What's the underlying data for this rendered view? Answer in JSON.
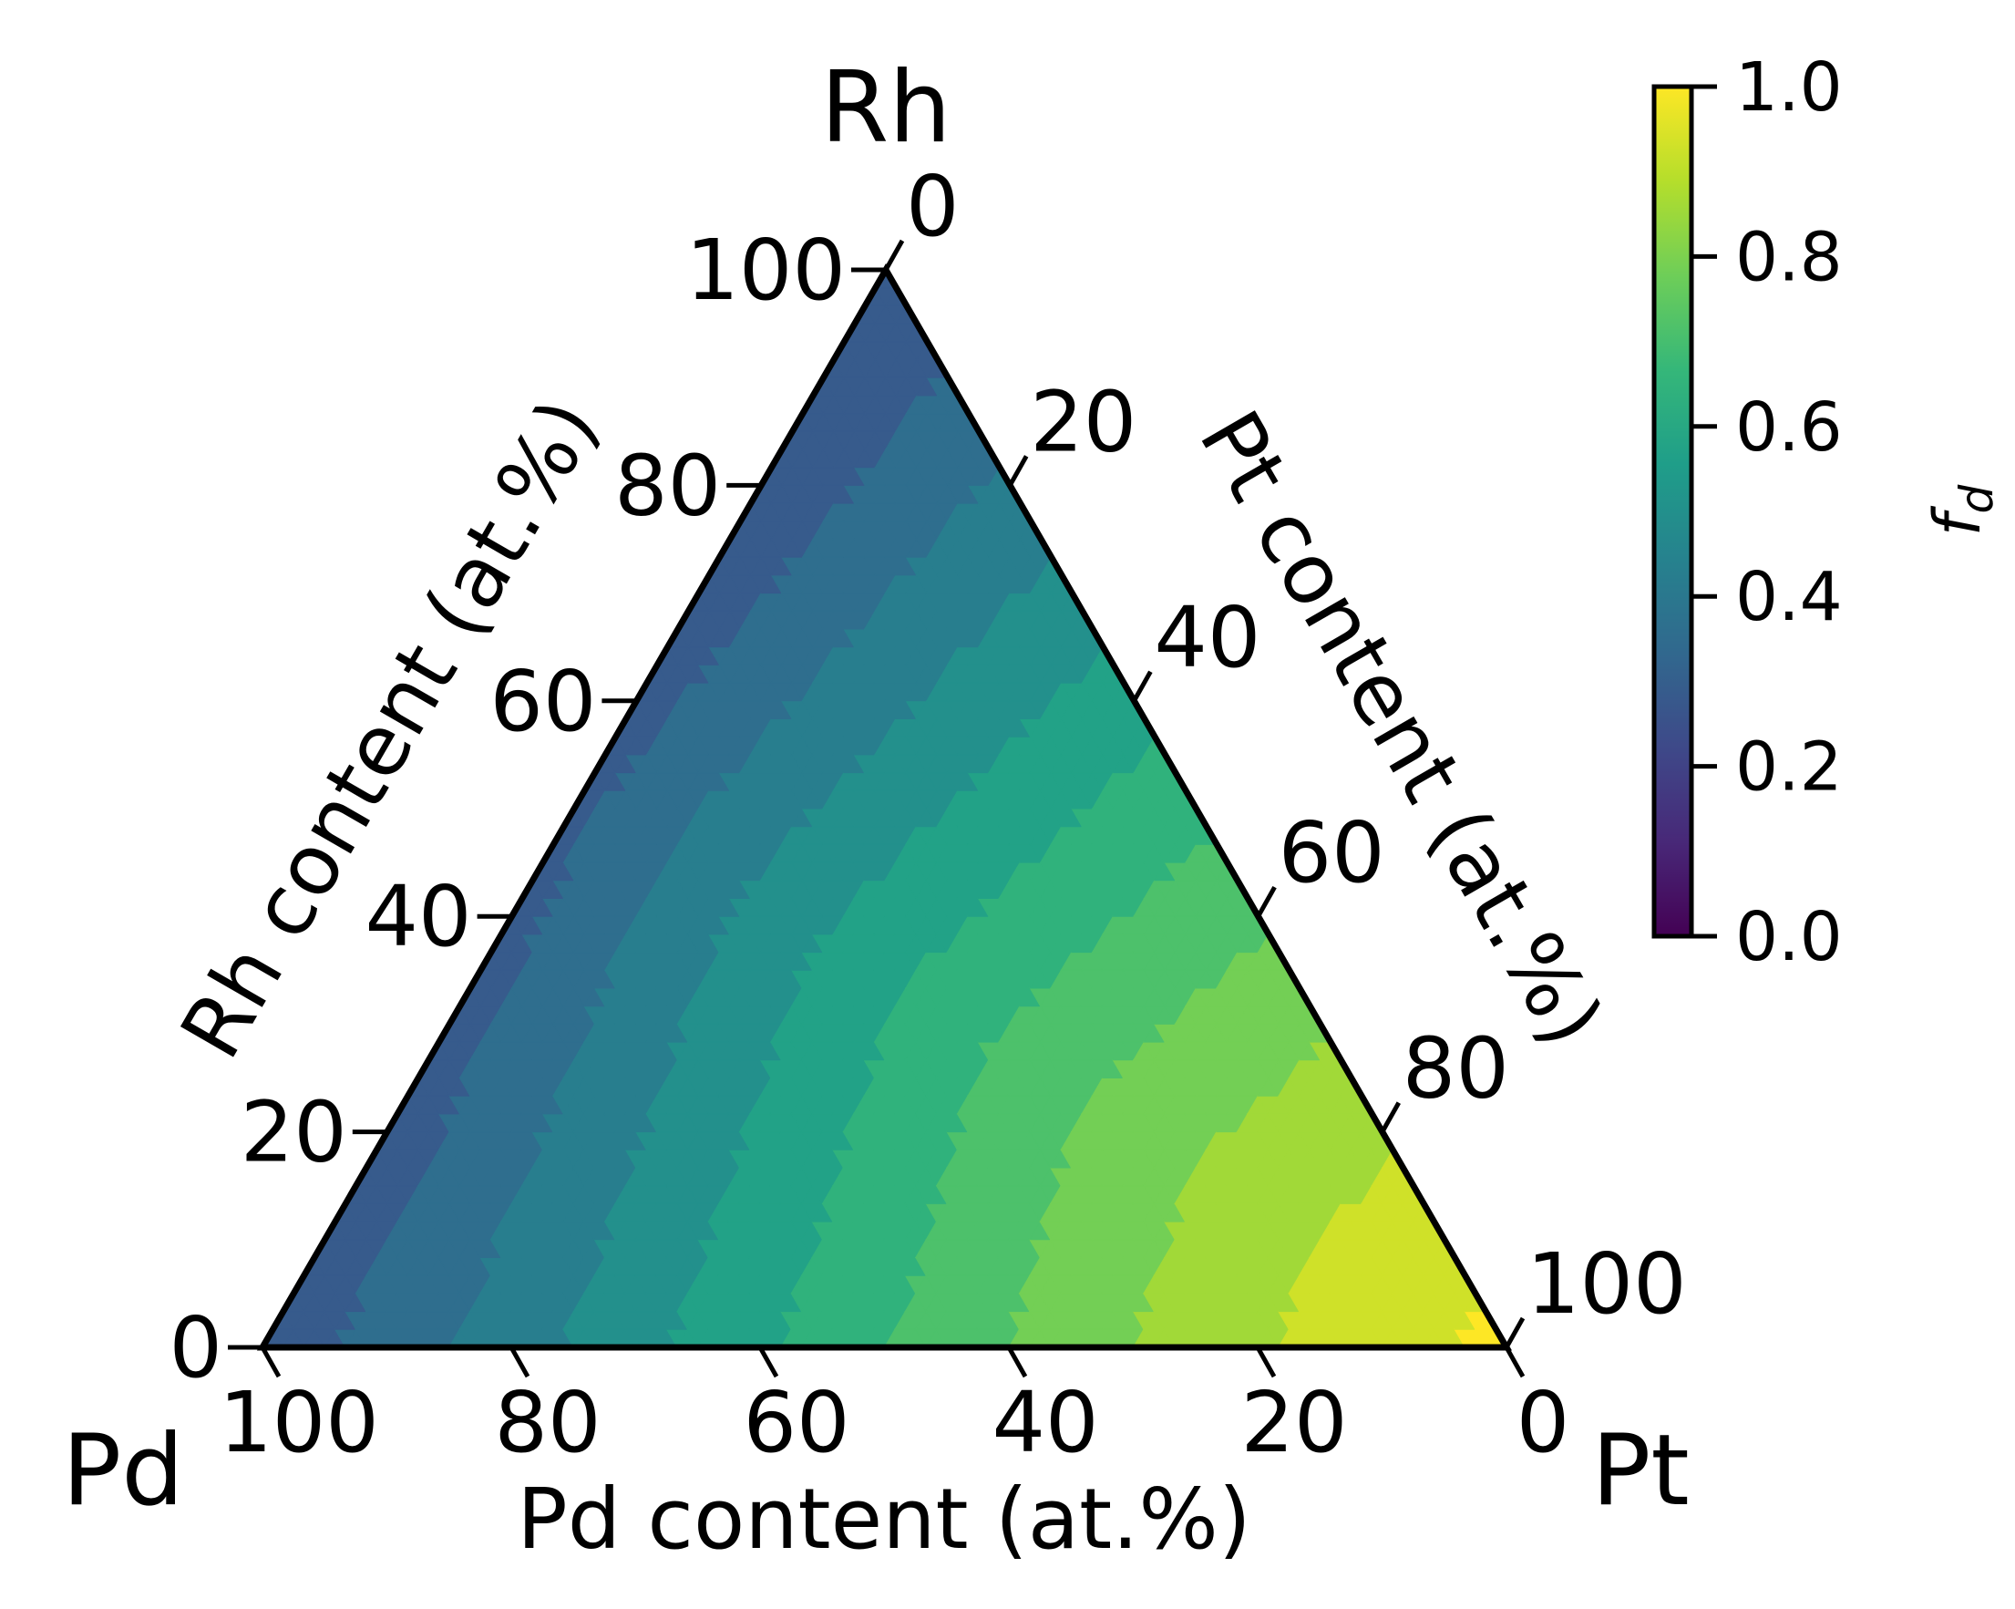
{
  "chart_data": {
    "type": "ternary-contour",
    "corners": {
      "top": "Rh",
      "left": "Pd",
      "right": "Pt"
    },
    "axes": {
      "bottom": {
        "label": "Pd content (at.%)",
        "ticks": [
          "100",
          "80",
          "60",
          "40",
          "20",
          "0"
        ]
      },
      "left": {
        "label": "Rh content (at.%)",
        "ticks": [
          "0",
          "20",
          "40",
          "60",
          "80",
          "100"
        ]
      },
      "right": {
        "label": "Pt content (at.%)",
        "ticks": [
          "0",
          "20",
          "40",
          "60",
          "80",
          "100"
        ]
      }
    },
    "colorbar": {
      "label": "f_d",
      "label_main": "f",
      "label_sub": "d",
      "colormap": "viridis",
      "range": [
        0.0,
        1.0
      ],
      "ticks": [
        "0.0",
        "0.2",
        "0.4",
        "0.6",
        "0.8",
        "1.0"
      ],
      "tick_values": [
        0.0,
        0.2,
        0.4,
        0.6,
        0.8,
        1.0
      ]
    },
    "levels": 14,
    "field_summary": {
      "f_d_at_Rh_corner": 0.25,
      "f_d_at_Pd_corner": 0.28,
      "f_d_at_Pt_corner": 0.98,
      "trend": "f_d rises with Pt content and falls toward the Pd-Rh edge"
    }
  },
  "colors": {
    "frame": "#000000",
    "viridis": [
      "#440154",
      "#482878",
      "#3e4989",
      "#31688e",
      "#26828e",
      "#1f9e89",
      "#35b779",
      "#6ece58",
      "#b5de2b",
      "#fde725"
    ]
  }
}
